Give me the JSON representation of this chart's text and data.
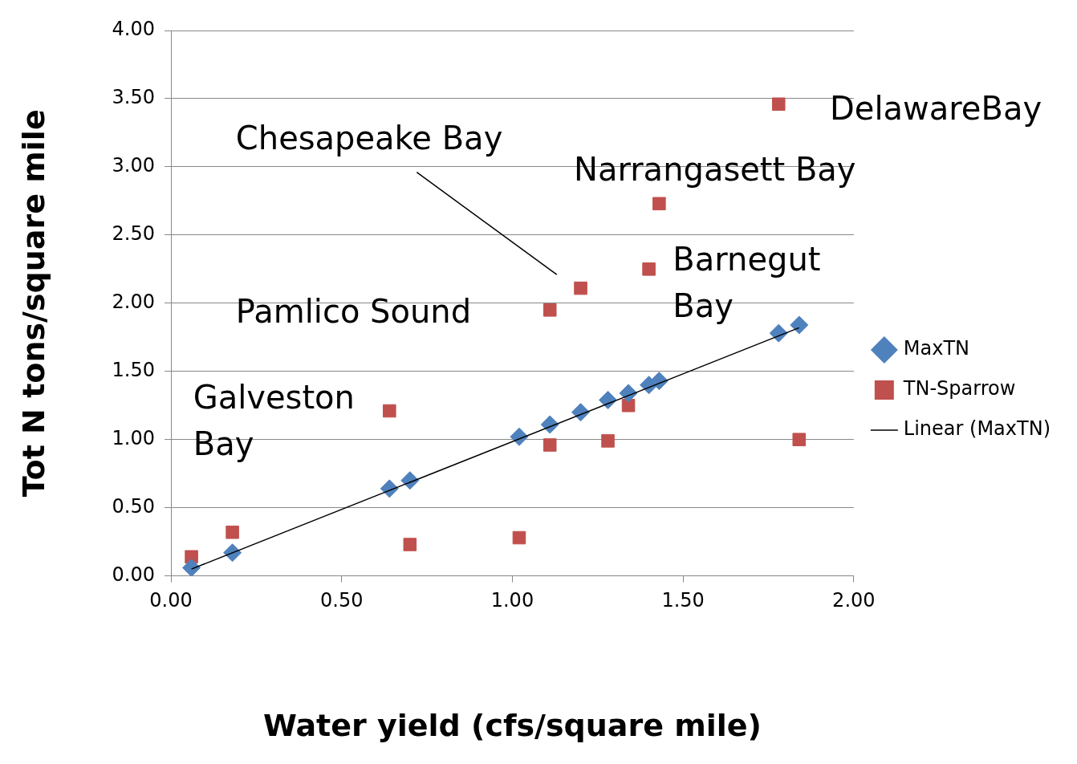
{
  "chart_data": {
    "type": "scatter",
    "xlabel": "Water yield (cfs/square mile)",
    "ylabel": "Tot N tons/square mile",
    "xlim": [
      0,
      2
    ],
    "ylim": [
      0,
      4
    ],
    "xticks": [
      {
        "value": 0,
        "label": "0.00"
      },
      {
        "value": 0.5,
        "label": "0.50"
      },
      {
        "value": 1,
        "label": "1.00"
      },
      {
        "value": 1.5,
        "label": "1.50"
      },
      {
        "value": 2,
        "label": "2.00"
      }
    ],
    "yticks": [
      {
        "value": 0,
        "label": "0.00"
      },
      {
        "value": 0.5,
        "label": "0.50"
      },
      {
        "value": 1,
        "label": "1.00"
      },
      {
        "value": 1.5,
        "label": "1.50"
      },
      {
        "value": 2,
        "label": "2.00"
      },
      {
        "value": 2.5,
        "label": "2.50"
      },
      {
        "value": 3,
        "label": "3.00"
      },
      {
        "value": 3.5,
        "label": "3.50"
      },
      {
        "value": 4,
        "label": "4.00"
      }
    ],
    "grid": "y",
    "legend": "right",
    "series": [
      {
        "name": "MaxTN",
        "color": "#4f81bd",
        "marker": "diamond",
        "x": [
          0.06,
          0.18,
          0.64,
          0.7,
          1.02,
          1.11,
          1.2,
          1.28,
          1.34,
          1.4,
          1.43,
          1.78,
          1.84
        ],
        "values": [
          0.06,
          0.17,
          0.64,
          0.7,
          1.02,
          1.11,
          1.2,
          1.29,
          1.34,
          1.4,
          1.43,
          1.78,
          1.84
        ]
      },
      {
        "name": "TN-Sparrow",
        "color": "#c0504d",
        "marker": "square",
        "x": [
          0.06,
          0.18,
          0.64,
          0.7,
          1.02,
          1.11,
          1.11,
          1.2,
          1.28,
          1.34,
          1.4,
          1.43,
          1.78,
          1.84
        ],
        "values": [
          0.14,
          0.32,
          1.21,
          0.23,
          0.28,
          1.95,
          0.96,
          2.11,
          0.99,
          1.25,
          2.25,
          2.73,
          3.46,
          1.0
        ]
      },
      {
        "name": "Linear (MaxTN)",
        "type": "line",
        "color": "#000000",
        "marker": "none",
        "x": [
          0.06,
          1.84
        ],
        "values": [
          0.05,
          1.82
        ]
      }
    ],
    "annotations": [
      "DelawareBay",
      "Narrangasett Bay",
      "Chesapeake Bay",
      "Barnegut\nBay",
      "Pamlico Sound",
      "Galveston\nBay"
    ]
  }
}
